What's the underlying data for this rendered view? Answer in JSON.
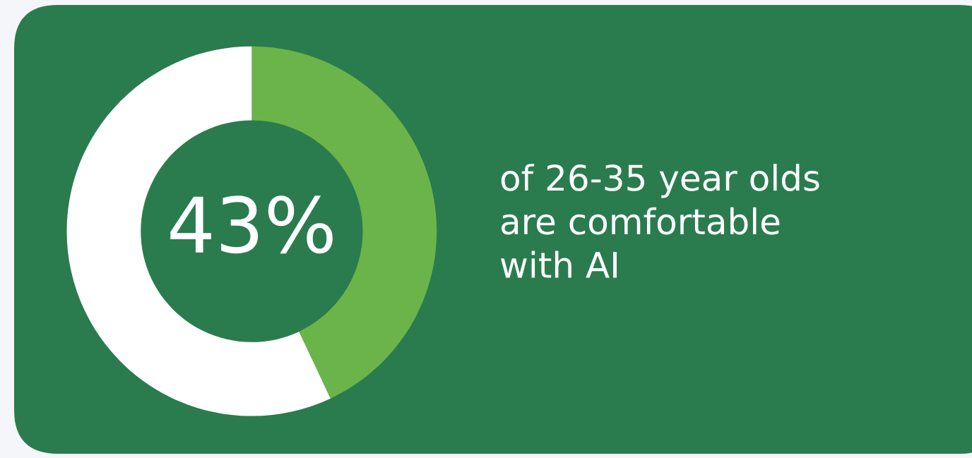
{
  "chart_data": {
    "type": "donut",
    "categories": [
      null,
      null
    ],
    "values": [
      43,
      57
    ],
    "colors": [
      "#6ab44a",
      "#ffffff"
    ],
    "annotations": [
      "43%",
      "of 26-35 year olds\nare comfortable\nwith AI"
    ]
  }
}
